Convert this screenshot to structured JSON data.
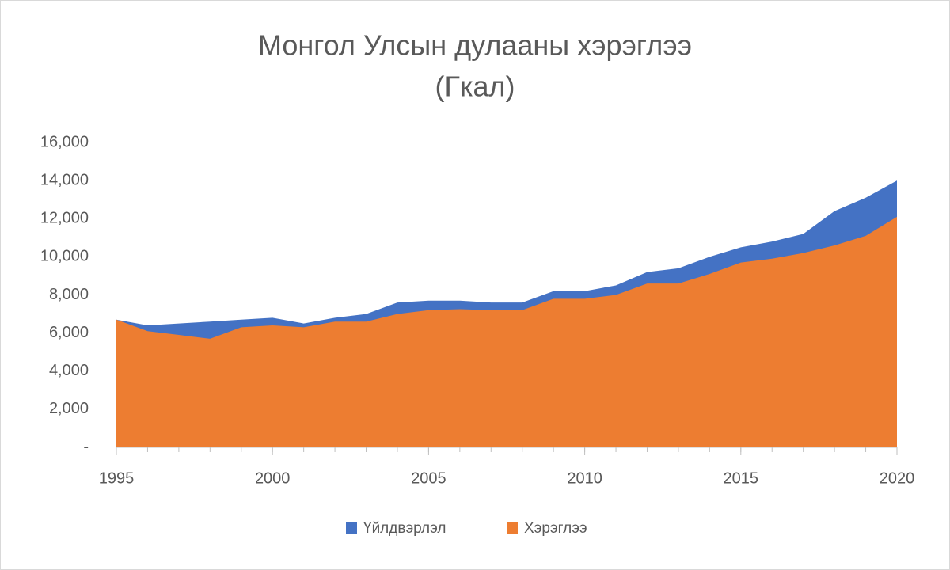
{
  "chart_data": {
    "type": "area",
    "title_lines": [
      "Монгол Улсын дулааны хэрэглээ",
      "(Гкал)"
    ],
    "x": [
      1995,
      1996,
      1997,
      1998,
      1999,
      2000,
      2001,
      2002,
      2003,
      2004,
      2005,
      2006,
      2007,
      2008,
      2009,
      2010,
      2011,
      2012,
      2013,
      2014,
      2015,
      2016,
      2017,
      2018,
      2019,
      2020
    ],
    "series": [
      {
        "name": "Үйлдвэрлэл",
        "color": "#4472c4",
        "values": [
          6700,
          6400,
          6500,
          6600,
          6700,
          6800,
          6500,
          6800,
          7000,
          7600,
          7700,
          7700,
          7600,
          7600,
          8200,
          8200,
          8500,
          9200,
          9400,
          10000,
          10500,
          10800,
          11200,
          12400,
          13100,
          14000
        ]
      },
      {
        "name": "Хэрэглээ",
        "color": "#ed7d31",
        "values": [
          6700,
          6100,
          5900,
          5700,
          6300,
          6400,
          6300,
          6600,
          6600,
          7000,
          7200,
          7250,
          7200,
          7200,
          7800,
          7800,
          8000,
          8600,
          8600,
          9100,
          9700,
          9900,
          10200,
          10600,
          11100,
          12100
        ]
      }
    ],
    "xlim": [
      1995,
      2020
    ],
    "xticks": [
      1995,
      2000,
      2005,
      2010,
      2015,
      2020
    ],
    "ylim": [
      0,
      16000
    ],
    "yticks": [
      {
        "value": 0,
        "label": "-"
      },
      {
        "value": 2000,
        "label": "2,000"
      },
      {
        "value": 4000,
        "label": "4,000"
      },
      {
        "value": 6000,
        "label": "6,000"
      },
      {
        "value": 8000,
        "label": "8,000"
      },
      {
        "value": 10000,
        "label": "10,000"
      },
      {
        "value": 12000,
        "label": "12,000"
      },
      {
        "value": 14000,
        "label": "14,000"
      },
      {
        "value": 16000,
        "label": "16,000"
      }
    ],
    "grid": false,
    "legend": "bottom"
  }
}
